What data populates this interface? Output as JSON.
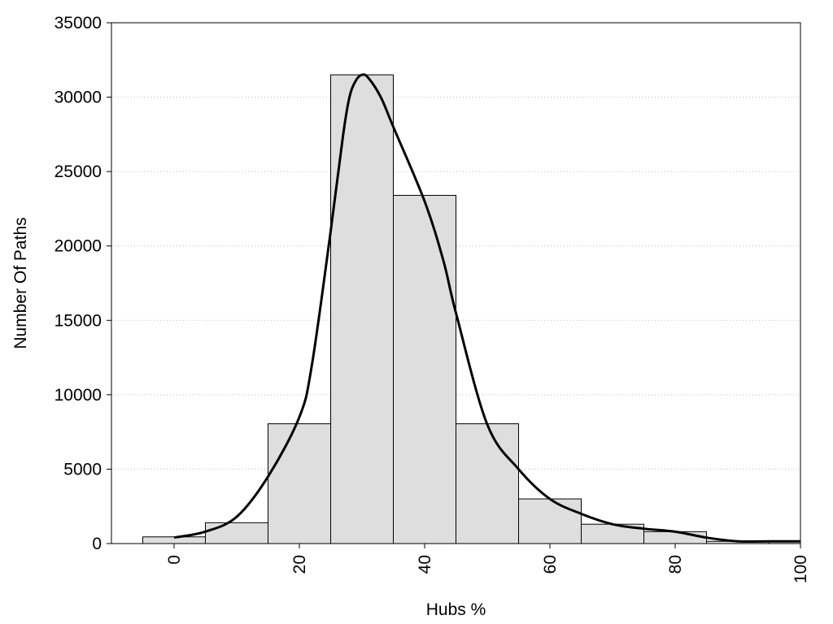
{
  "chart_data": {
    "type": "bar",
    "title": "",
    "xlabel": "Hubs %",
    "ylabel": "Number Of Paths",
    "xlim": [
      -10,
      100
    ],
    "ylim": [
      0,
      35000
    ],
    "x_ticks": [
      0,
      20,
      40,
      60,
      80,
      100
    ],
    "y_ticks": [
      0,
      5000,
      10000,
      15000,
      20000,
      25000,
      30000,
      35000
    ],
    "grid": "horizontal dotted",
    "bin_width": 10,
    "bars": [
      {
        "x": 0,
        "value": 450
      },
      {
        "x": 10,
        "value": 1400
      },
      {
        "x": 20,
        "value": 8050
      },
      {
        "x": 30,
        "value": 31500
      },
      {
        "x": 40,
        "value": 23400
      },
      {
        "x": 50,
        "value": 8050
      },
      {
        "x": 60,
        "value": 3000
      },
      {
        "x": 70,
        "value": 1300
      },
      {
        "x": 80,
        "value": 800
      },
      {
        "x": 90,
        "value": 150
      },
      {
        "x": 100,
        "value": 150
      }
    ],
    "curve": {
      "type": "line",
      "x": [
        0,
        5,
        10,
        15,
        20,
        22,
        25,
        27,
        28,
        29,
        30,
        31,
        33,
        35,
        40,
        43,
        45,
        50,
        55,
        60,
        65,
        70,
        75,
        80,
        85,
        90,
        95,
        100
      ],
      "y": [
        400,
        800,
        1800,
        4500,
        8500,
        12000,
        21000,
        27500,
        30000,
        31100,
        31500,
        31300,
        30000,
        28000,
        23000,
        19000,
        15500,
        8000,
        5000,
        3000,
        2000,
        1300,
        1000,
        800,
        400,
        150,
        150,
        150
      ]
    },
    "colors": {
      "bar_fill": "#dedede",
      "bar_stroke": "#000000",
      "curve": "#000000",
      "grid": "#bbbbbb"
    }
  }
}
